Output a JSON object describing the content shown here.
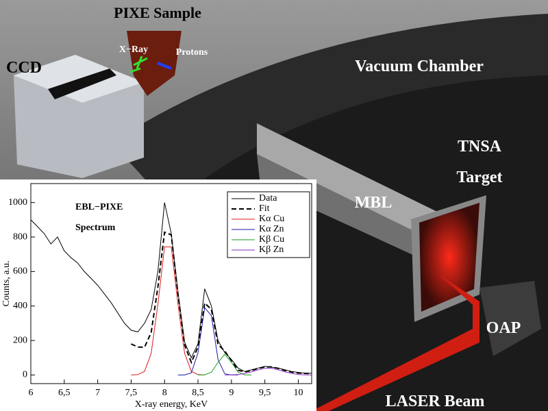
{
  "scene": {
    "pixe_sample": "PIXE Sample",
    "xray": "X−Ray",
    "protons": "Protons",
    "ccd": "CCD",
    "vacuum_chamber": "Vacuum Chamber",
    "tnsa": "TNSA",
    "target": "Target",
    "mbl": "MBL",
    "oap": "OAP",
    "laser_beam": "LASER Beam"
  },
  "chart_data": {
    "type": "line",
    "annotations": [
      "EBL−PIXE",
      "Spectrum"
    ],
    "x_label": "X-ray energy, KeV",
    "y_label": "Counts, a.u.",
    "x": [
      6,
      6.1,
      6.2,
      6.3,
      6.4,
      6.5,
      6.6,
      6.7,
      6.8,
      6.9,
      7,
      7.1,
      7.2,
      7.3,
      7.4,
      7.5,
      7.6,
      7.7,
      7.8,
      7.9,
      8,
      8.1,
      8.2,
      8.3,
      8.4,
      8.5,
      8.6,
      8.7,
      8.8,
      8.9,
      9,
      9.1,
      9.2,
      9.3,
      9.4,
      9.5,
      9.6,
      9.7,
      9.8,
      9.9,
      10,
      10.1,
      10.2
    ],
    "series": [
      {
        "name": "Data",
        "color": "#000000",
        "dash": false,
        "values": [
          900,
          860,
          820,
          760,
          800,
          720,
          680,
          650,
          600,
          560,
          520,
          470,
          420,
          360,
          300,
          260,
          250,
          300,
          380,
          600,
          1000,
          820,
          480,
          190,
          100,
          180,
          500,
          400,
          200,
          130,
          90,
          40,
          20,
          30,
          40,
          50,
          45,
          40,
          30,
          20,
          15,
          10,
          10
        ]
      },
      {
        "name": "Fit",
        "color": "#000000",
        "dash": true,
        "values": [
          null,
          null,
          null,
          null,
          null,
          null,
          null,
          null,
          null,
          null,
          null,
          null,
          null,
          null,
          null,
          180,
          162,
          161,
          246,
          511,
          828,
          813,
          469,
          174,
          73,
          162,
          417,
          380,
          177,
          139,
          84,
          27,
          18,
          26,
          38,
          47,
          47,
          38,
          26,
          17,
          11,
          9,
          8
        ]
      },
      {
        "name": "Kα Cu",
        "color": "#e0191b",
        "dash": false,
        "values": [
          null,
          null,
          null,
          null,
          null,
          null,
          null,
          null,
          null,
          null,
          null,
          null,
          null,
          null,
          null,
          0,
          2,
          21,
          126,
          411,
          743,
          743,
          411,
          126,
          21,
          2,
          0,
          null,
          null,
          null,
          null,
          null,
          null,
          null,
          null,
          null,
          null,
          null,
          null,
          null,
          null,
          null,
          null
        ]
      },
      {
        "name": "Kα Zn",
        "color": "#1a1aa8",
        "dash": false,
        "values": [
          null,
          null,
          null,
          null,
          null,
          null,
          null,
          null,
          null,
          null,
          null,
          null,
          null,
          null,
          null,
          null,
          null,
          null,
          null,
          null,
          null,
          null,
          0,
          0,
          12,
          128,
          390,
          344,
          89,
          7,
          0,
          0,
          null,
          null,
          null,
          null,
          null,
          null,
          null,
          null,
          null,
          null,
          null
        ]
      },
      {
        "name": "Kβ Cu",
        "color": "#1a9a1a",
        "dash": false,
        "values": [
          null,
          null,
          null,
          null,
          null,
          null,
          null,
          null,
          null,
          null,
          null,
          null,
          null,
          null,
          null,
          null,
          null,
          null,
          null,
          null,
          null,
          null,
          null,
          null,
          null,
          0,
          1,
          16,
          73,
          120,
          73,
          16,
          1,
          0,
          null,
          null,
          null,
          null,
          null,
          null,
          null,
          null,
          null
        ]
      },
      {
        "name": "Kβ Zn",
        "color": "#8a2ac0",
        "dash": false,
        "values": [
          null,
          null,
          null,
          null,
          null,
          null,
          null,
          null,
          null,
          null,
          null,
          null,
          null,
          null,
          null,
          null,
          null,
          null,
          null,
          null,
          null,
          null,
          null,
          null,
          null,
          null,
          null,
          null,
          null,
          0,
          1,
          3,
          9,
          18,
          30,
          39,
          39,
          30,
          18,
          9,
          3,
          1,
          0
        ]
      }
    ],
    "xlim": [
      6,
      10.2
    ],
    "ylim": [
      -50,
      1110
    ],
    "xticks": [
      6,
      {
        "value": 6.5,
        "label": "6,5"
      },
      7,
      {
        "value": 7.5,
        "label": "7,5"
      },
      8,
      {
        "value": 8.5,
        "label": "8,5"
      },
      9,
      {
        "value": 9.5,
        "label": "9,5"
      },
      10
    ],
    "yticks": [
      0,
      200,
      400,
      600,
      800,
      1000
    ],
    "legend": "upper right"
  }
}
